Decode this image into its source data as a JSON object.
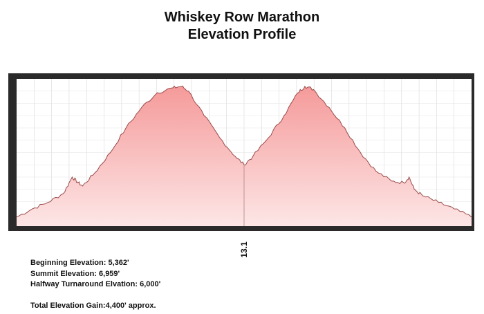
{
  "title_line1": "Whiskey Row Marathon",
  "title_line2": "Elevation Profile",
  "midpoint_label": "13.1",
  "stats": {
    "beginning": "Beginning Elevation: 5,362'",
    "summit": "Summit Elevation: 6,959'",
    "halfway": "Halfway Turnaround Elvation: 6,000'",
    "total_gain": "Total Elevation Gain:4,400' approx."
  },
  "colors": {
    "fill_top": "#f59a9a",
    "fill_bottom": "#fde6e6",
    "line": "#9a4a4a",
    "frame": "#2a2a2a"
  },
  "chart_data": {
    "type": "area",
    "x": [
      0,
      0.9,
      1.8,
      2.7,
      3.2,
      3.5,
      3.8,
      4.5,
      5.4,
      6.3,
      7.2,
      8.1,
      9.0,
      9.5,
      9.9,
      10.8,
      11.7,
      12.6,
      13.1,
      13.6,
      14.5,
      15.4,
      16.2,
      16.6,
      17.1,
      18.0,
      18.9,
      19.8,
      20.7,
      21.6,
      22.3,
      22.6,
      22.9,
      23.4,
      24.3,
      25.2,
      26.2
    ],
    "values": [
      5362,
      5460,
      5540,
      5650,
      5850,
      5790,
      5740,
      5900,
      6150,
      6450,
      6700,
      6880,
      6940,
      6959,
      6900,
      6600,
      6330,
      6100,
      6000,
      6100,
      6330,
      6600,
      6880,
      6959,
      6920,
      6700,
      6450,
      6150,
      5920,
      5800,
      5780,
      5850,
      5700,
      5620,
      5540,
      5460,
      5362
    ],
    "xlabel": "",
    "ylabel": "",
    "ylim": [
      5250,
      7050
    ],
    "grid": true
  }
}
